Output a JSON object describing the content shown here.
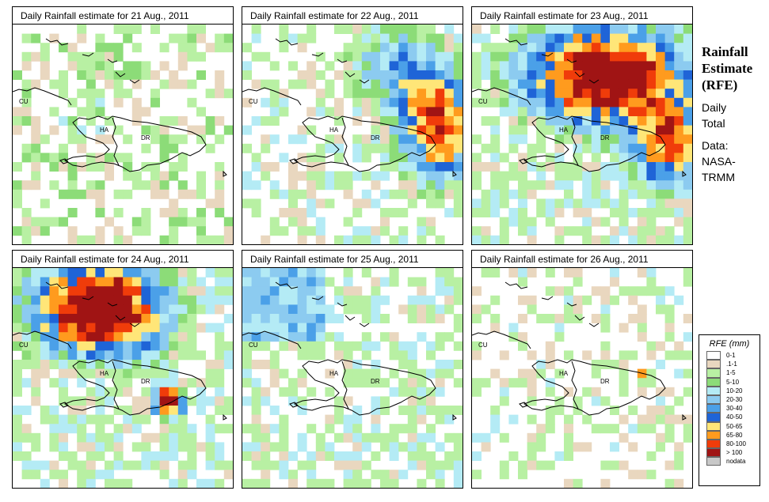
{
  "panels": [
    {
      "title": "Daily Rainfall estimate for  21 Aug., 2011",
      "pattern": "sparse",
      "labels": {
        "cu": "CU",
        "ha": "HA",
        "dr": "DR"
      }
    },
    {
      "title": "Daily Rainfall estimate for  22 Aug., 2011",
      "pattern": "east_storm",
      "labels": {
        "cu": "CU",
        "ha": "HA",
        "dr": "DR"
      }
    },
    {
      "title": "Daily Rainfall estimate for  23 Aug., 2011",
      "pattern": "north_storm",
      "labels": {
        "cu": "CU",
        "ha": "HA",
        "dr": "DR"
      }
    },
    {
      "title": "Daily Rainfall estimate for  24 Aug., 2011",
      "pattern": "northwest_storm",
      "labels": {
        "cu": "CU",
        "ha": "HA",
        "dr": "DR"
      }
    },
    {
      "title": "Daily Rainfall estimate for  25 Aug., 2011",
      "pattern": "light",
      "labels": {
        "cu": "CU",
        "ha": "HA",
        "dr": "DR"
      }
    },
    {
      "title": "Daily Rainfall estimate for  26 Aug., 2011",
      "pattern": "sparse_east",
      "labels": {
        "cu": "CU",
        "ha": "HA",
        "dr": "DR"
      }
    }
  ],
  "side": {
    "title_lines": [
      "Rainfall",
      "Estimate",
      "(RFE)"
    ],
    "daily_lines": [
      "Daily",
      "Total"
    ],
    "data_lines": [
      "Data:",
      "NASA-",
      "TRMM"
    ]
  },
  "legend": {
    "title": "RFE (mm)",
    "items": [
      {
        "label": "0-1",
        "color": "#ffffff"
      },
      {
        "label": ".1-1",
        "color": "#e9d7bf"
      },
      {
        "label": "1-5",
        "color": "#b8f0a3"
      },
      {
        "label": "5-10",
        "color": "#8cdc78"
      },
      {
        "label": "10-20",
        "color": "#b4ebf5"
      },
      {
        "label": "20-30",
        "color": "#8ccbf0"
      },
      {
        "label": "30-40",
        "color": "#4ba0e8"
      },
      {
        "label": "40-50",
        "color": "#1f64d7"
      },
      {
        "label": "50-65",
        "color": "#ffe678"
      },
      {
        "label": "65-80",
        "color": "#ff9b1e"
      },
      {
        "label": "80-100",
        "color": "#f03c0a"
      },
      {
        "label": "> 100",
        "color": "#a01414"
      },
      {
        "label": "nodata",
        "color": "#c8c8c8"
      }
    ]
  }
}
